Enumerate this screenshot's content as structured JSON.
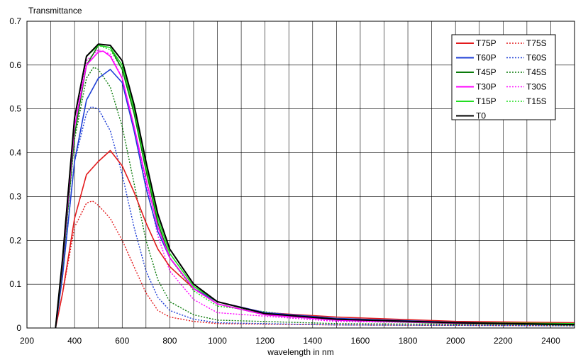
{
  "chart_data": {
    "type": "line",
    "title": "",
    "ylabel": "Transmittance",
    "xlabel": "wavelength in nm",
    "xlim": [
      200,
      2500
    ],
    "ylim": [
      0,
      0.7
    ],
    "xticks": [
      200,
      400,
      600,
      800,
      1000,
      1200,
      1400,
      1600,
      1800,
      2000,
      2200,
      2400
    ],
    "yticks": [
      0,
      0.1,
      0.2,
      0.3,
      0.4,
      0.5,
      0.6,
      0.7
    ],
    "x_gridlines_every": 100,
    "grid": true,
    "legend_position": "top-right",
    "series": [
      {
        "name": "T75P",
        "color": "#e31a1c",
        "dash": "solid",
        "x": [
          320,
          350,
          400,
          450,
          500,
          550,
          600,
          650,
          700,
          750,
          800,
          900,
          1000,
          1200,
          1500,
          2000,
          2500
        ],
        "y": [
          0.0,
          0.08,
          0.25,
          0.35,
          0.38,
          0.405,
          0.37,
          0.31,
          0.24,
          0.18,
          0.14,
          0.09,
          0.06,
          0.035,
          0.025,
          0.015,
          0.012
        ]
      },
      {
        "name": "T75S",
        "color": "#e31a1c",
        "dash": "dot",
        "x": [
          320,
          350,
          400,
          450,
          475,
          500,
          550,
          600,
          650,
          700,
          750,
          800,
          900,
          1000,
          1500,
          2500
        ],
        "y": [
          0.0,
          0.08,
          0.23,
          0.285,
          0.29,
          0.28,
          0.25,
          0.2,
          0.14,
          0.08,
          0.04,
          0.025,
          0.015,
          0.01,
          0.007,
          0.005
        ]
      },
      {
        "name": "T60P",
        "color": "#1f3fd6",
        "dash": "solid",
        "x": [
          320,
          350,
          400,
          450,
          500,
          550,
          600,
          650,
          700,
          750,
          800,
          900,
          1000,
          1200,
          1500,
          2000,
          2500
        ],
        "y": [
          0.0,
          0.12,
          0.38,
          0.52,
          0.57,
          0.59,
          0.56,
          0.45,
          0.32,
          0.22,
          0.16,
          0.09,
          0.06,
          0.035,
          0.022,
          0.013,
          0.008
        ]
      },
      {
        "name": "T60S",
        "color": "#1f3fd6",
        "dash": "dot",
        "x": [
          320,
          350,
          400,
          450,
          470,
          500,
          550,
          600,
          650,
          700,
          750,
          800,
          900,
          1000,
          1500,
          2500
        ],
        "y": [
          0.0,
          0.12,
          0.38,
          0.49,
          0.505,
          0.5,
          0.45,
          0.35,
          0.23,
          0.13,
          0.07,
          0.04,
          0.02,
          0.012,
          0.007,
          0.005
        ]
      },
      {
        "name": "T45P",
        "color": "#0a7a0a",
        "dash": "solid",
        "x": [
          320,
          350,
          400,
          450,
          500,
          550,
          600,
          650,
          700,
          750,
          800,
          900,
          1000,
          1200,
          1500,
          2000,
          2500
        ],
        "y": [
          0.0,
          0.14,
          0.44,
          0.6,
          0.645,
          0.64,
          0.59,
          0.49,
          0.36,
          0.24,
          0.16,
          0.09,
          0.055,
          0.03,
          0.018,
          0.01,
          0.007
        ]
      },
      {
        "name": "T45S",
        "color": "#0a7a0a",
        "dash": "dot",
        "x": [
          320,
          350,
          400,
          450,
          480,
          500,
          550,
          600,
          650,
          700,
          750,
          800,
          900,
          1000,
          1500,
          2500
        ],
        "y": [
          0.0,
          0.14,
          0.43,
          0.57,
          0.595,
          0.59,
          0.55,
          0.46,
          0.33,
          0.2,
          0.11,
          0.06,
          0.03,
          0.018,
          0.01,
          0.007
        ]
      },
      {
        "name": "T30P",
        "color": "#ff00ff",
        "dash": "solid",
        "x": [
          320,
          350,
          400,
          450,
          500,
          520,
          550,
          600,
          650,
          700,
          750,
          800,
          900,
          1000,
          1200,
          1500,
          2000,
          2500
        ],
        "y": [
          0.0,
          0.15,
          0.46,
          0.6,
          0.63,
          0.632,
          0.62,
          0.57,
          0.46,
          0.34,
          0.23,
          0.16,
          0.09,
          0.055,
          0.03,
          0.018,
          0.011,
          0.008
        ]
      },
      {
        "name": "T30S",
        "color": "#ff00ff",
        "dash": "dot",
        "x": [
          320,
          350,
          400,
          450,
          500,
          550,
          600,
          650,
          700,
          750,
          800,
          900,
          1000,
          1500,
          2500
        ],
        "y": [
          0.0,
          0.15,
          0.46,
          0.61,
          0.635,
          0.625,
          0.57,
          0.46,
          0.33,
          0.21,
          0.13,
          0.065,
          0.035,
          0.015,
          0.008
        ]
      },
      {
        "name": "T15P",
        "color": "#22dd22",
        "dash": "solid",
        "x": [
          320,
          350,
          400,
          450,
          500,
          550,
          600,
          650,
          700,
          750,
          800,
          900,
          1000,
          1200,
          1500,
          2000,
          2500
        ],
        "y": [
          0.0,
          0.16,
          0.48,
          0.62,
          0.645,
          0.64,
          0.6,
          0.5,
          0.37,
          0.25,
          0.17,
          0.095,
          0.06,
          0.033,
          0.02,
          0.012,
          0.01
        ]
      },
      {
        "name": "T15S",
        "color": "#22dd22",
        "dash": "dot",
        "x": [
          320,
          350,
          400,
          450,
          500,
          550,
          600,
          650,
          700,
          750,
          800,
          900,
          1000,
          1500,
          2500
        ],
        "y": [
          0.0,
          0.16,
          0.48,
          0.62,
          0.645,
          0.635,
          0.59,
          0.49,
          0.36,
          0.24,
          0.16,
          0.085,
          0.05,
          0.018,
          0.009
        ]
      },
      {
        "name": "T0",
        "color": "#000000",
        "dash": "solid",
        "x": [
          320,
          350,
          400,
          450,
          500,
          550,
          600,
          650,
          700,
          750,
          800,
          900,
          1000,
          1200,
          1500,
          2000,
          2500
        ],
        "y": [
          0.0,
          0.16,
          0.48,
          0.62,
          0.648,
          0.645,
          0.61,
          0.51,
          0.38,
          0.26,
          0.18,
          0.1,
          0.06,
          0.033,
          0.02,
          0.012,
          0.008
        ]
      }
    ]
  }
}
